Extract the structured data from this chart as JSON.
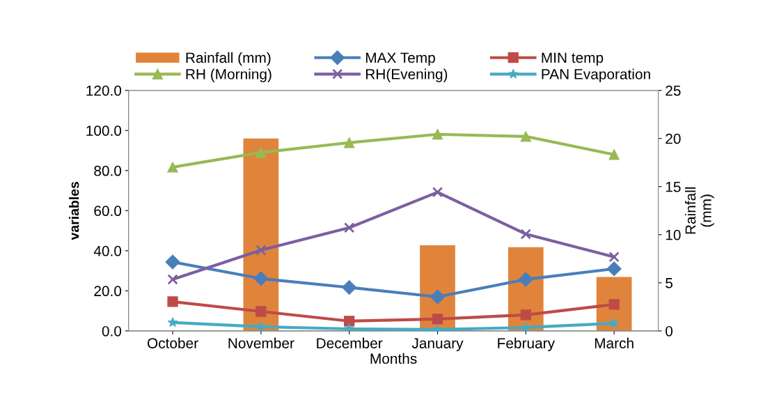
{
  "chart_data": {
    "type": "line",
    "xlabel": "Months",
    "ylabel": "variables",
    "y2label": "Rainfall\n(mm)",
    "categories": [
      "October",
      "November",
      "December",
      "January",
      "February",
      "March"
    ],
    "series": [
      {
        "name": "Rainfall (mm)",
        "type": "bar",
        "axis": "y2",
        "color": "#e0843c",
        "values": [
          0,
          20.0,
          0,
          8.9,
          8.7,
          5.6
        ]
      },
      {
        "name": "MAX Temp",
        "color": "#4a7ebb",
        "marker": "diamond",
        "values": [
          34.4,
          26.1,
          21.7,
          17.0,
          25.7,
          31.0
        ]
      },
      {
        "name": "MIN temp",
        "color": "#be4b48",
        "marker": "square",
        "values": [
          14.6,
          9.7,
          4.9,
          5.9,
          8.0,
          13.2
        ]
      },
      {
        "name": "RH (Morning)",
        "color": "#98b954",
        "marker": "triangle",
        "values": [
          81.7,
          89.0,
          93.9,
          98.1,
          97.0,
          88.0
        ]
      },
      {
        "name": "RH(Evening)",
        "color": "#7d5fa0",
        "marker": "cross",
        "values": [
          25.7,
          40.3,
          51.5,
          69.2,
          48.3,
          36.9
        ]
      },
      {
        "name": "PAN Evaporation",
        "color": "#46aac5",
        "marker": "star",
        "values": [
          4.2,
          2.1,
          1.0,
          0.7,
          1.7,
          3.8
        ]
      }
    ],
    "ylim": [
      0,
      120
    ],
    "yticks": [
      {
        "value": 0,
        "label": "0.0"
      },
      {
        "value": 20,
        "label": "20.0"
      },
      {
        "value": 40,
        "label": "40.0"
      },
      {
        "value": 60,
        "label": "60.0"
      },
      {
        "value": 80,
        "label": "80.0"
      },
      {
        "value": 100,
        "label": "100.0"
      },
      {
        "value": 120,
        "label": "120.0"
      }
    ],
    "y2lim": [
      0,
      25
    ],
    "y2ticks": [
      0,
      5,
      10,
      15,
      20,
      25
    ],
    "legend": "top",
    "grid": false
  }
}
